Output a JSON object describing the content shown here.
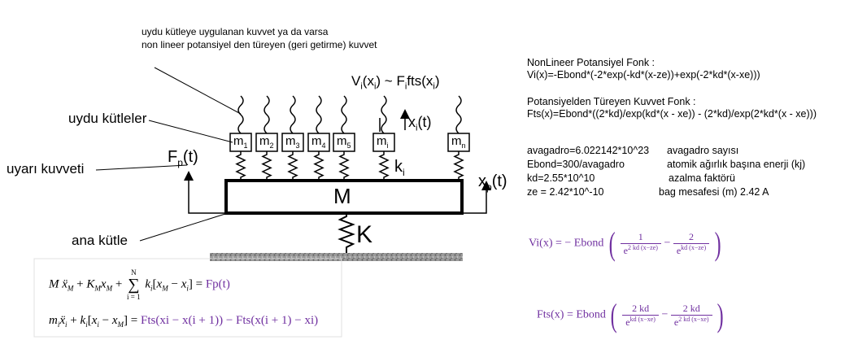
{
  "annotations": {
    "force_note_1": "uydu kütleye uygulanan kuvvet ya da varsa",
    "force_note_2": "non lineer potansiyel den türeyen (geri getirme) kuvvet",
    "satellite_masses": "uydu kütleler",
    "excitation_force": "uyarı kuvveti",
    "main_mass": "ana kütle"
  },
  "diagram": {
    "masses": [
      "m",
      "m",
      "m",
      "m",
      "m",
      "m",
      "m"
    ],
    "mass_subscripts": [
      "1",
      "2",
      "3",
      "4",
      "5",
      "i",
      "n"
    ],
    "main_mass_label": "M",
    "spring_label": "K",
    "ki_label": "k",
    "ki_sub": "i",
    "force_label": "F",
    "force_sub": "p",
    "force_arg": "(t)",
    "xp_label": "x",
    "xp_sub": "p",
    "xp_arg": "(t)",
    "xi_label": "x",
    "xi_sub": "i",
    "xi_arg": "(t)",
    "vi_label": "V",
    "vi_mid": "(x",
    "vi_end": ") ~ F",
    "vi_fts": "fts(x",
    "vi_close": ")"
  },
  "equations": {
    "eq1_lhs": "Mẍ",
    "eq1_text": "M + K",
    "eq1_a": "Mẍ_M + K_M x_M + ",
    "eq1_sum_top": "N",
    "eq1_sum_bottom": "i = 1",
    "eq1_b": "k_i[x_M − x_i] = ",
    "eq1_rhs": "Fp(t)",
    "eq2_a": "m_i ẍ_i + k_i[x_i − x_M] = ",
    "eq2_rhs": "Fts(xi − x(i + 1)) − Fts(x(i + 1) − xi)"
  },
  "info": {
    "title1": "NonLineer Potansiyel Fonk :",
    "line1": "Vi(x)=-Ebond*(-2*exp(-kd*(x-ze))+exp(-2*kd*(x-xe)))",
    "title2": "Potansiyelden Türeyen Kuvvet Fonk :",
    "line2": "Fts(x)=Ebond*((2*kd)/exp(kd*(x - xe)) - (2*kd)/exp(2*kd*(x - xe)))",
    "params": [
      {
        "expr": "avagadro=6.022142*10^23",
        "desc": "avagadro sayısı"
      },
      {
        "expr": "Ebond=300/avagadro",
        "desc": "atomik ağırlık başına enerji (kj)"
      },
      {
        "expr": "kd=2.55*10^10",
        "desc": "azalma faktörü"
      },
      {
        "expr": "ze = 2.42*10^-10",
        "desc": "bag mesafesi (m) 2.42 A"
      }
    ]
  },
  "formulas": {
    "vi_lhs": "Vi(x) = − Ebond",
    "vi_num1": "1",
    "vi_den1_base": "e",
    "vi_den1_exp": "2 kd (x−ze)",
    "vi_minus": "−",
    "vi_num2": "2",
    "vi_den2_base": "e",
    "vi_den2_exp": "kd (x−ze)",
    "fts_lhs": "Fts(x) = Ebond",
    "fts_num1": "2 kd",
    "fts_den1_base": "e",
    "fts_den1_exp": "kd (x−xe)",
    "fts_minus": "−",
    "fts_num2": "2 kd",
    "fts_den2_base": "e",
    "fts_den2_exp": "2 kd (x−xe)"
  },
  "colors": {
    "accent": "#7030a0",
    "ground": "#8c8c8c"
  }
}
